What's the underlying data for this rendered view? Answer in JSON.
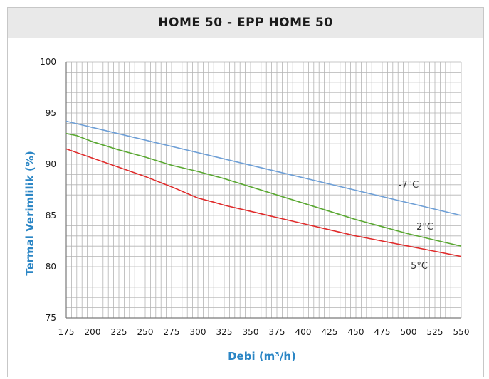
{
  "chart_data": {
    "type": "line",
    "title": "HOME 50 - EPP HOME 50",
    "xlabel": "Debi (m³/h)",
    "ylabel": "Termal Verimlilik (%)",
    "xlim": [
      175,
      550
    ],
    "ylim": [
      75,
      100
    ],
    "xticks": [
      175,
      200,
      225,
      250,
      275,
      300,
      325,
      350,
      375,
      400,
      425,
      450,
      475,
      500,
      525,
      550
    ],
    "yticks": [
      75,
      80,
      85,
      90,
      95,
      100
    ],
    "grid": true,
    "series": [
      {
        "name": "-7°C",
        "color": "#6e9fd6",
        "x": [
          175,
          550
        ],
        "y": [
          94.2,
          85.0
        ]
      },
      {
        "name": "2°C",
        "color": "#5aa832",
        "x": [
          175,
          185,
          200,
          225,
          250,
          275,
          300,
          325,
          350,
          375,
          400,
          425,
          450,
          475,
          500,
          525,
          550
        ],
        "y": [
          93.0,
          92.8,
          92.2,
          91.4,
          90.7,
          89.9,
          89.3,
          88.6,
          87.8,
          87.0,
          86.2,
          85.4,
          84.6,
          83.9,
          83.2,
          82.6,
          82.0
        ]
      },
      {
        "name": "5°C",
        "color": "#e02b2b",
        "x": [
          175,
          200,
          225,
          250,
          275,
          300,
          315,
          325,
          350,
          375,
          400,
          425,
          450,
          475,
          500,
          525,
          550
        ],
        "y": [
          91.5,
          90.6,
          89.7,
          88.8,
          87.8,
          86.7,
          86.3,
          86.0,
          85.4,
          84.8,
          84.2,
          83.6,
          83.0,
          82.5,
          82.0,
          81.5,
          81.0
        ]
      }
    ],
    "colors": {
      "axis_text": "#1a1a1a",
      "label": "#2b86c5",
      "grid": "#b4b4b4",
      "axis": "#7a7a7a"
    }
  }
}
